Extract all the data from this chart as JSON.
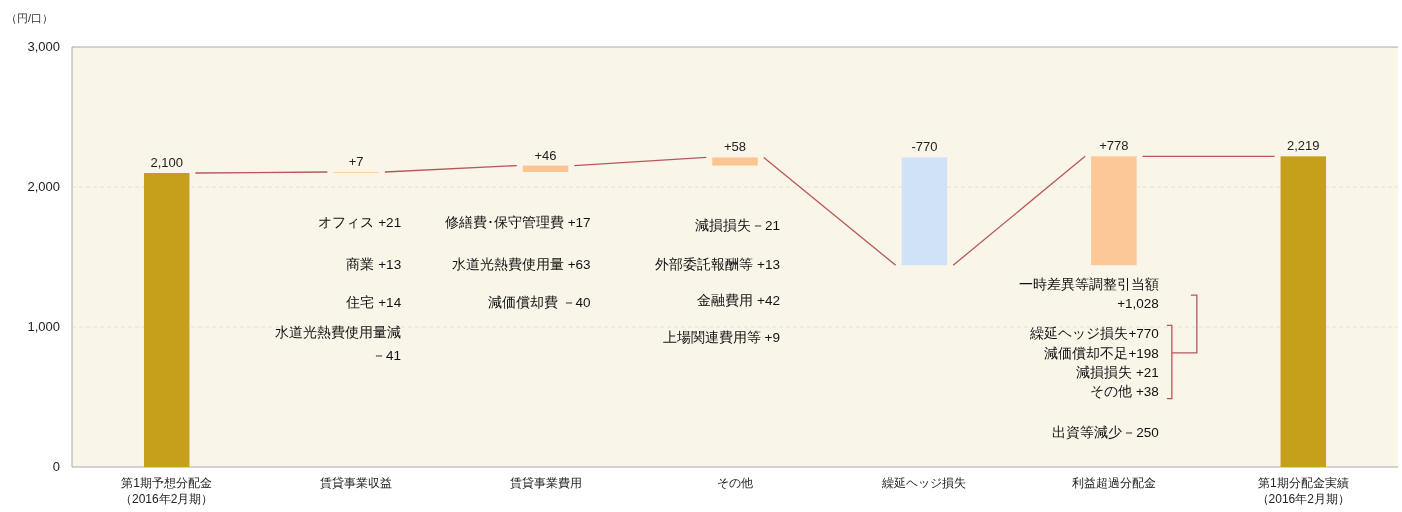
{
  "chart_data": {
    "type": "bar",
    "ylabel": "（円/口）",
    "categories": [
      "第1期予想分配金（2016年2月期）",
      "賃貸事業収益",
      "賃貸事業費用",
      "その他",
      "繰延ヘッジ損失",
      "利益超過分配金",
      "第1期分配金実績（2016年2月期）"
    ],
    "values": [
      2100,
      7,
      46,
      58,
      -770,
      778,
      2219
    ],
    "base": [
      0,
      2100,
      2107,
      2153,
      2211,
      1441,
      0
    ],
    "colors": [
      "#c7a01b",
      "#fdd3a8",
      "#fdc48f",
      "#fdc48f",
      "#cfe2f8",
      "#fdc897",
      "#c7a01b"
    ],
    "value_labels": [
      "2,100",
      "+7",
      "+46",
      "+58",
      "-770",
      "+778",
      "2,219"
    ],
    "ylim": [
      0,
      3000
    ],
    "yticks": [
      {
        "value": 0,
        "label": "0"
      },
      {
        "value": 1000,
        "label": "1,000"
      },
      {
        "value": 2000,
        "label": "2,000"
      },
      {
        "value": 3000,
        "label": "3,000"
      }
    ],
    "grid": "y",
    "annotations": [
      "オフィス +21",
      "商業 +13",
      "住宅 +14",
      "水道光熱費使用量減",
      "－41",
      "修繕費･保守管理費 +17",
      "水道光熱費使用量 +63",
      "減価償却費 －40",
      "減損損失－21",
      "外部委託報酬等  +13",
      "金融費用  +42",
      "上場関連費用等   +9",
      "一時差異等調整引当額",
      "+1,028",
      "繰延ヘッジ損失+770",
      "減価償却不足+198",
      "減損損失  +21",
      "その他  +38",
      "出資等減少－250"
    ]
  }
}
